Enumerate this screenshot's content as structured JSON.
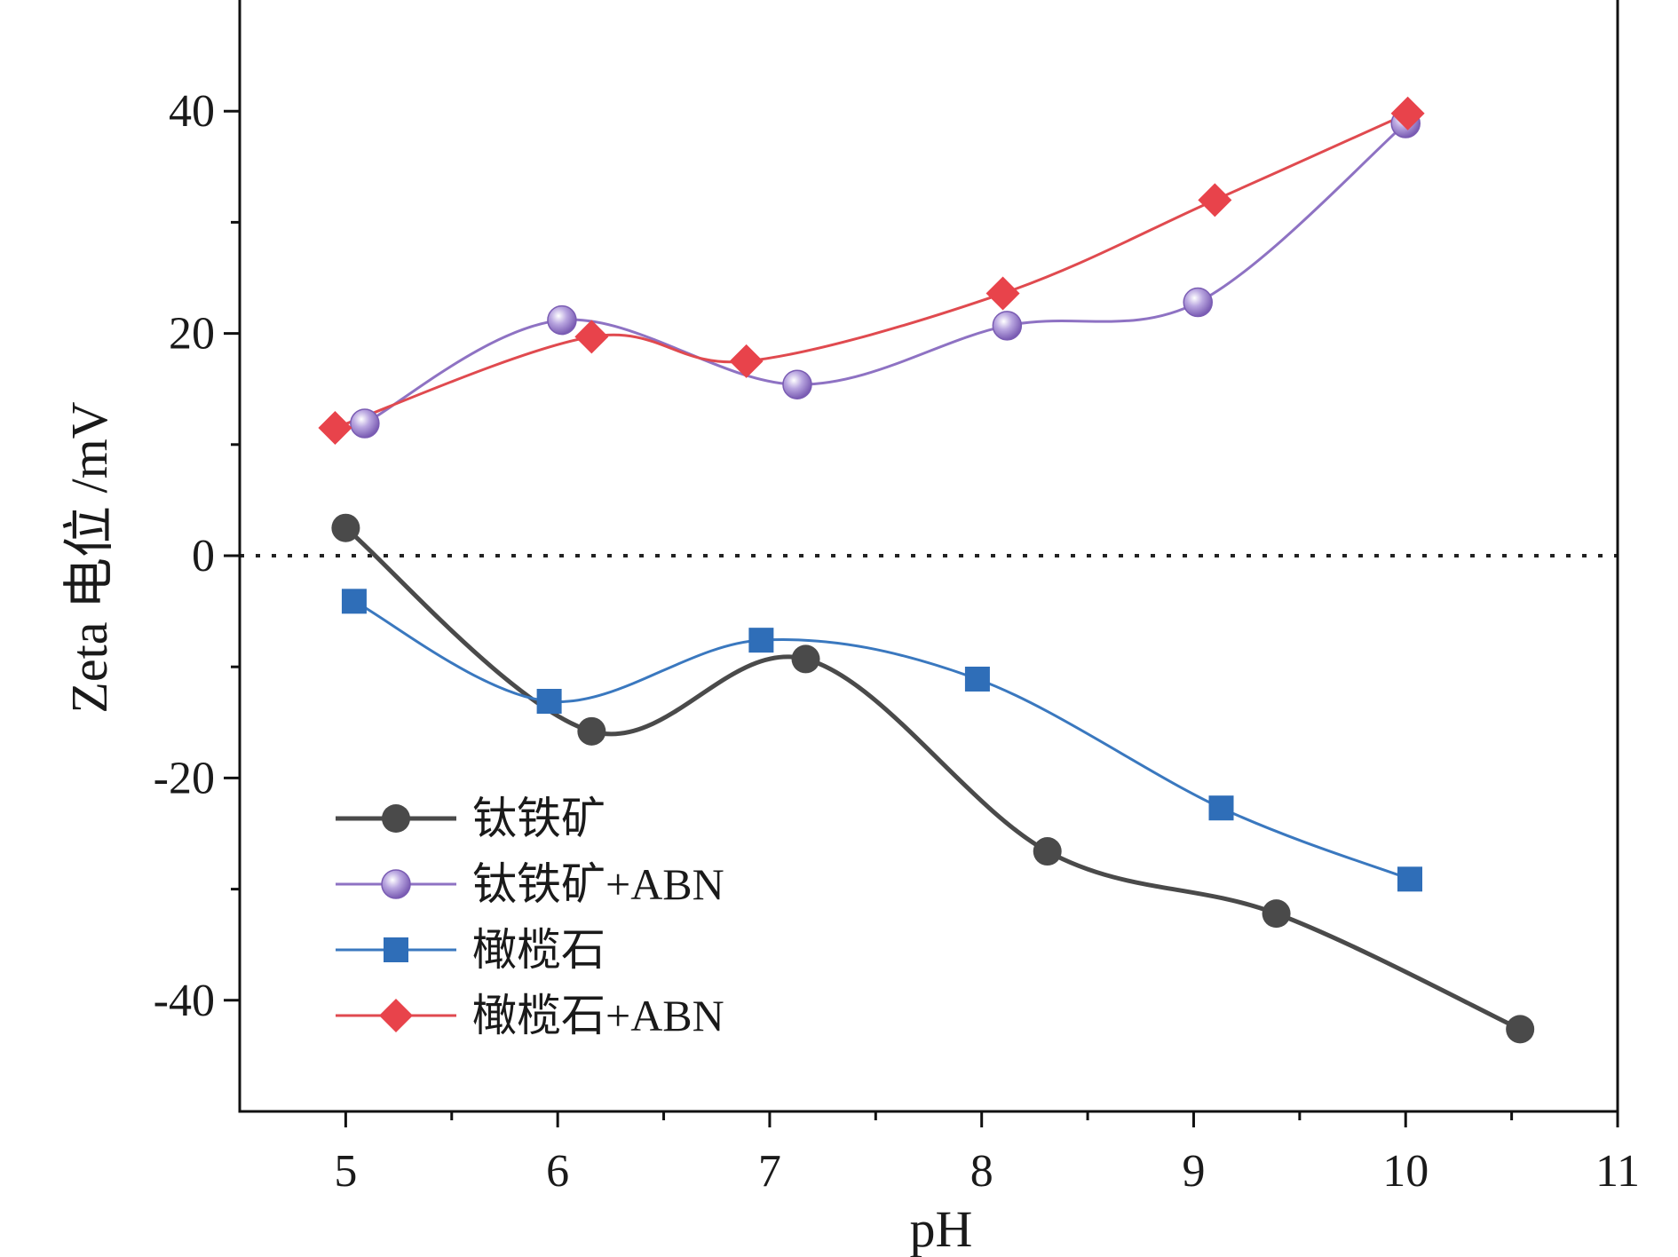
{
  "chart_data": {
    "type": "line",
    "xlabel": "pH",
    "ylabel": "Zeta 电位 /mV",
    "xlim": [
      4.5,
      11
    ],
    "ylim": [
      -50,
      50
    ],
    "x_ticks": [
      5,
      6,
      7,
      8,
      9,
      10,
      11
    ],
    "y_ticks": [
      -40,
      -20,
      0,
      20,
      40
    ],
    "x_tick_labels": [
      "5",
      "6",
      "7",
      "8",
      "9",
      "10",
      "11"
    ],
    "y_tick_labels": [
      "-40",
      "-20",
      "0",
      "20",
      "40"
    ],
    "reference_line": {
      "y": 0,
      "style": "dotted"
    },
    "grid": false,
    "legend_position": "bottom-left",
    "series": [
      {
        "name": "钛铁矿",
        "marker": "circle",
        "color": "#4a4a4a",
        "line_color": "#4a4a4a",
        "smooth": true,
        "points": [
          [
            5.0,
            2.5
          ],
          [
            6.16,
            -15.8
          ],
          [
            7.17,
            -9.3
          ],
          [
            8.31,
            -26.6
          ],
          [
            9.39,
            -32.2
          ],
          [
            10.54,
            -42.6
          ]
        ]
      },
      {
        "name": "钛铁矿+ABN",
        "marker": "sphere",
        "color": "#8e72c3",
        "line_color": "#8e72c3",
        "smooth": true,
        "points": [
          [
            5.09,
            11.9
          ],
          [
            6.02,
            21.2
          ],
          [
            7.13,
            15.4
          ],
          [
            8.12,
            20.7
          ],
          [
            9.02,
            22.8
          ],
          [
            10.0,
            38.9
          ]
        ]
      },
      {
        "name": "橄榄石",
        "marker": "square",
        "color": "#2f6eb8",
        "line_color": "#3a78bf",
        "smooth": true,
        "points": [
          [
            5.04,
            -4.1
          ],
          [
            5.96,
            -13.1
          ],
          [
            6.96,
            -7.6
          ],
          [
            7.98,
            -11.1
          ],
          [
            9.13,
            -22.7
          ],
          [
            10.02,
            -29.1
          ]
        ]
      },
      {
        "name": "橄榄石+ABN",
        "marker": "diamond",
        "color": "#e8434b",
        "line_color": "#e04a4f",
        "smooth": true,
        "points": [
          [
            4.95,
            11.5
          ],
          [
            6.16,
            19.7
          ],
          [
            6.89,
            17.5
          ],
          [
            8.1,
            23.6
          ],
          [
            9.1,
            32.0
          ],
          [
            10.01,
            39.8
          ]
        ]
      }
    ]
  }
}
